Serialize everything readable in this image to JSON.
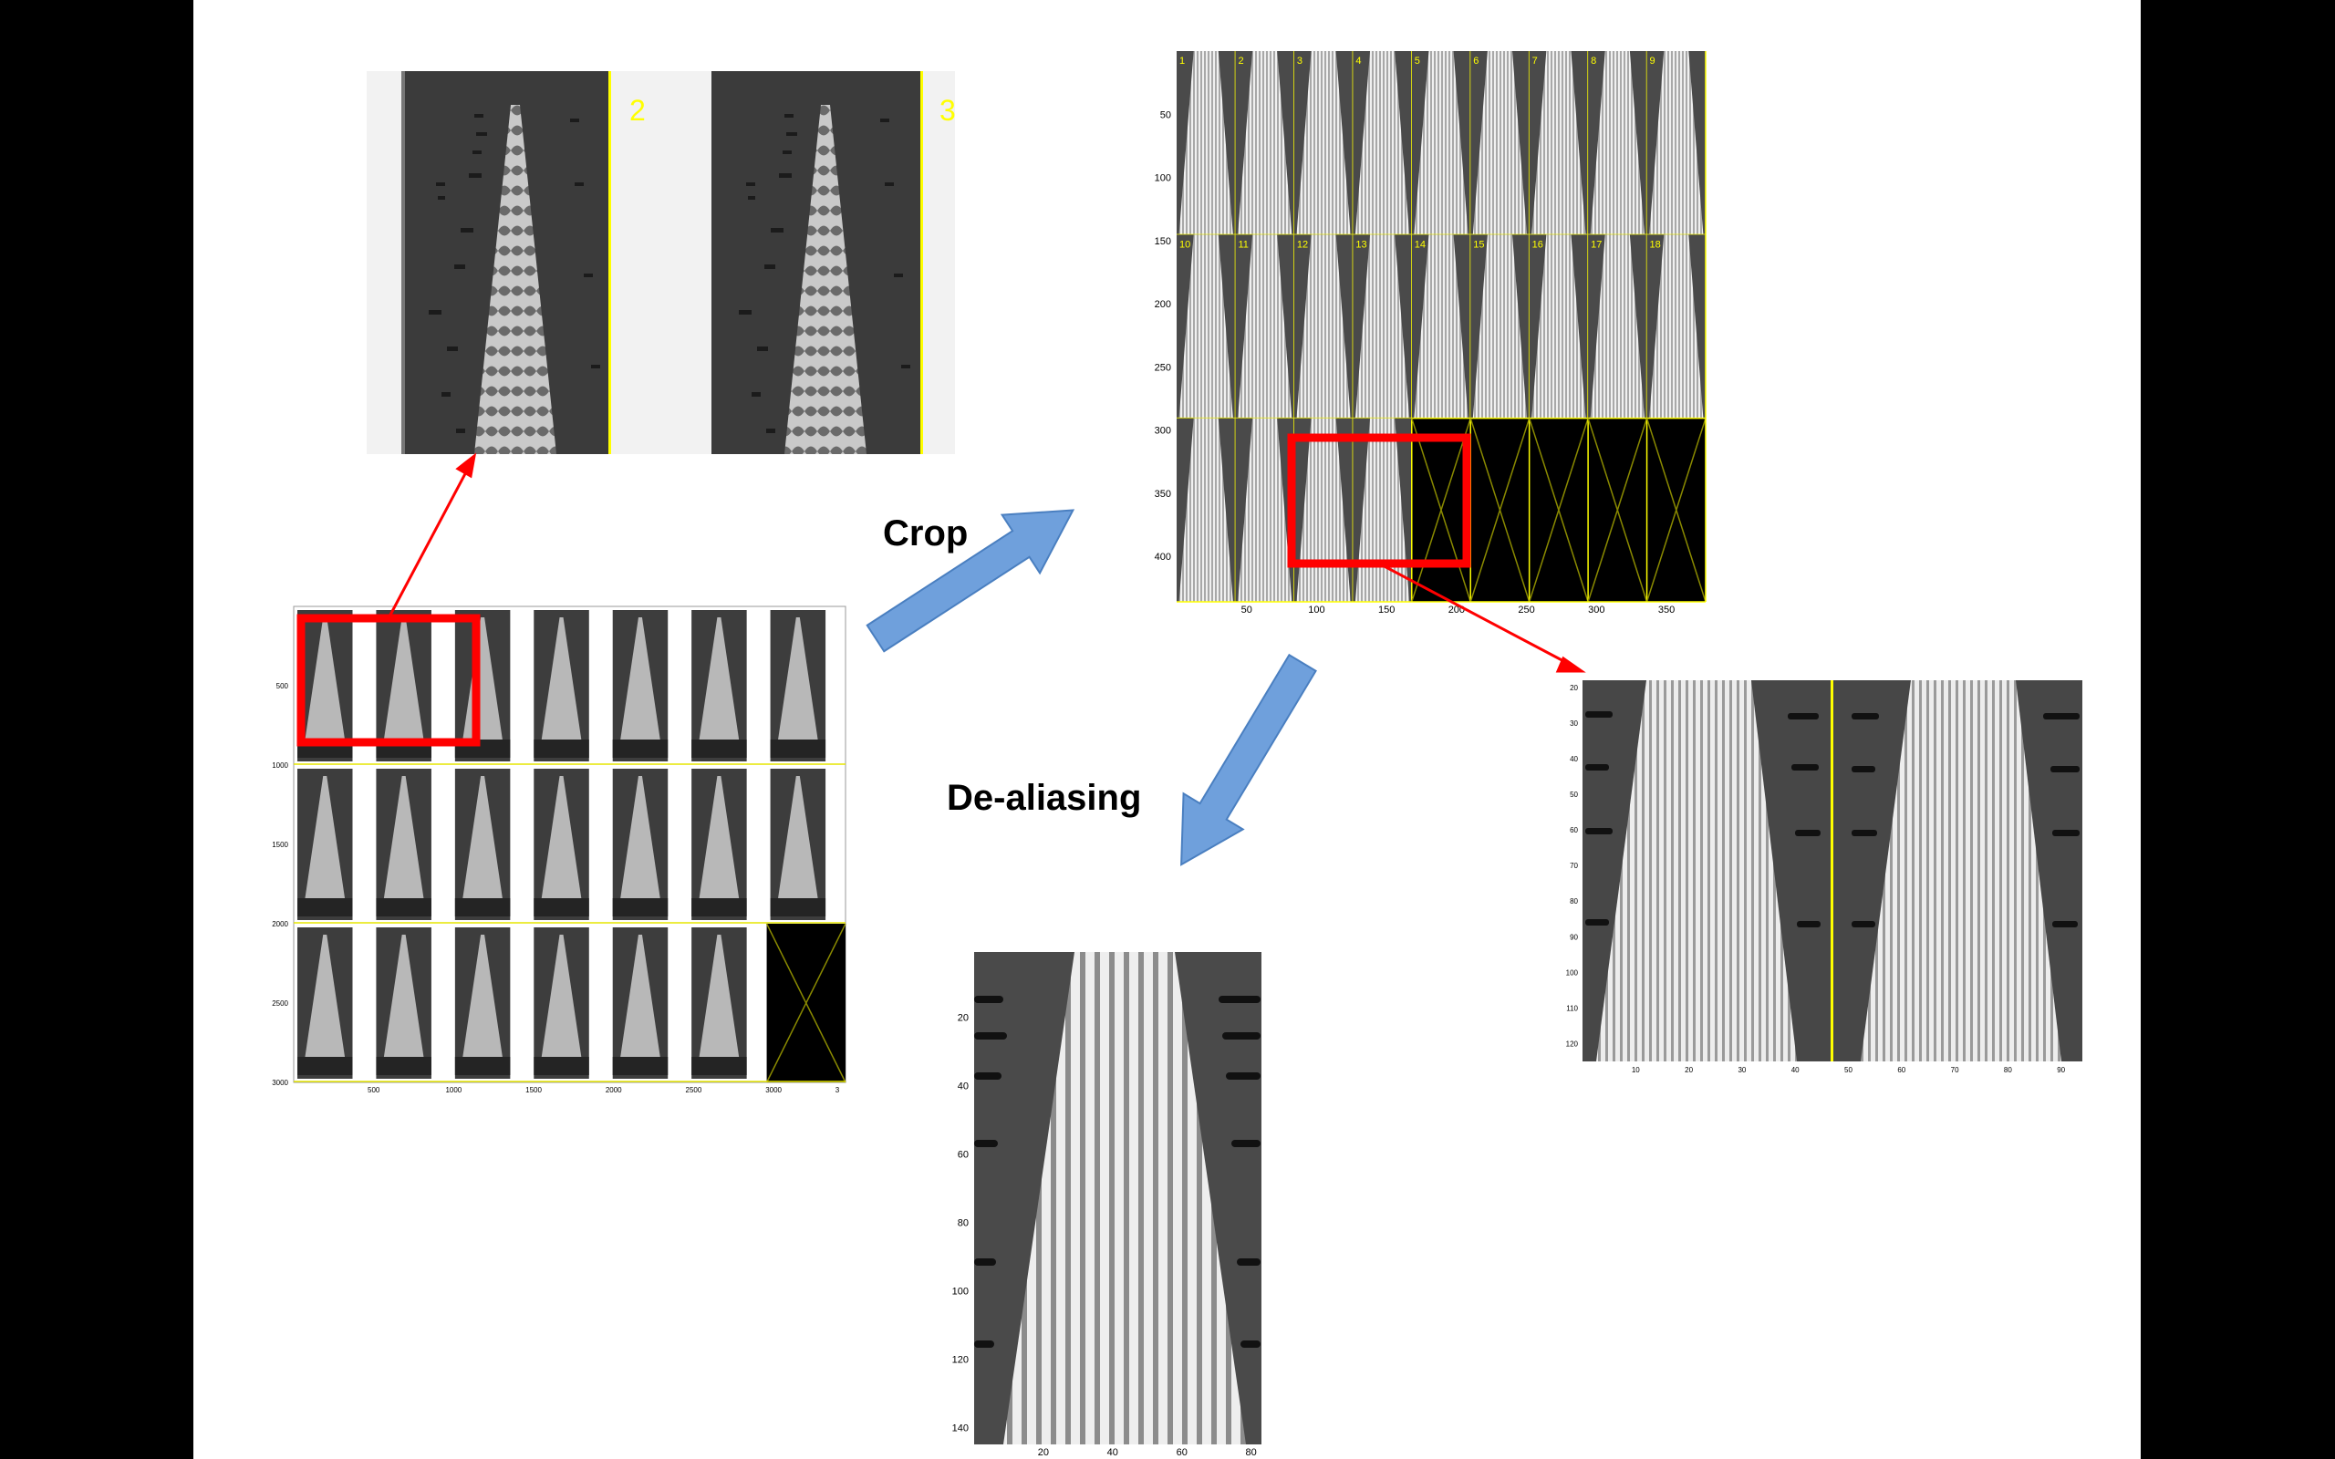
{
  "labels": {
    "crop": "Crop",
    "dealias": "De-aliasing"
  },
  "zoom_panel": {
    "frame_numbers": [
      "2",
      "3"
    ]
  },
  "crop_panel": {
    "frame_numbers": [
      "1",
      "2",
      "3",
      "4",
      "5",
      "6",
      "7",
      "8",
      "9",
      "10",
      "11",
      "12",
      "13",
      "14",
      "15",
      "16",
      "17",
      "18"
    ],
    "yticks": [
      "50",
      "100",
      "150",
      "200",
      "250",
      "300",
      "350",
      "400"
    ],
    "xticks": [
      "50",
      "100",
      "150",
      "200",
      "250",
      "300",
      "350"
    ]
  },
  "full_panel": {
    "yticks": [
      "500",
      "1000",
      "1500",
      "2000",
      "2500",
      "3000"
    ],
    "xticks": [
      "500",
      "1000",
      "1500",
      "2000",
      "2500",
      "3000",
      "3"
    ]
  },
  "pair_panel": {
    "yticks": [
      "20",
      "30",
      "40",
      "50",
      "60",
      "70",
      "80",
      "90",
      "100",
      "110",
      "120"
    ],
    "xticks": [
      "10",
      "20",
      "30",
      "40",
      "50",
      "60",
      "70",
      "80",
      "90"
    ]
  },
  "dealias_panel": {
    "yticks": [
      "20",
      "40",
      "60",
      "80",
      "100",
      "120",
      "140"
    ],
    "xticks": [
      "20",
      "40",
      "60",
      "80"
    ]
  },
  "colors": {
    "highlight": "#ff0000",
    "arrow_fill": "#6fa0dc",
    "frame_line": "#ffff00"
  }
}
